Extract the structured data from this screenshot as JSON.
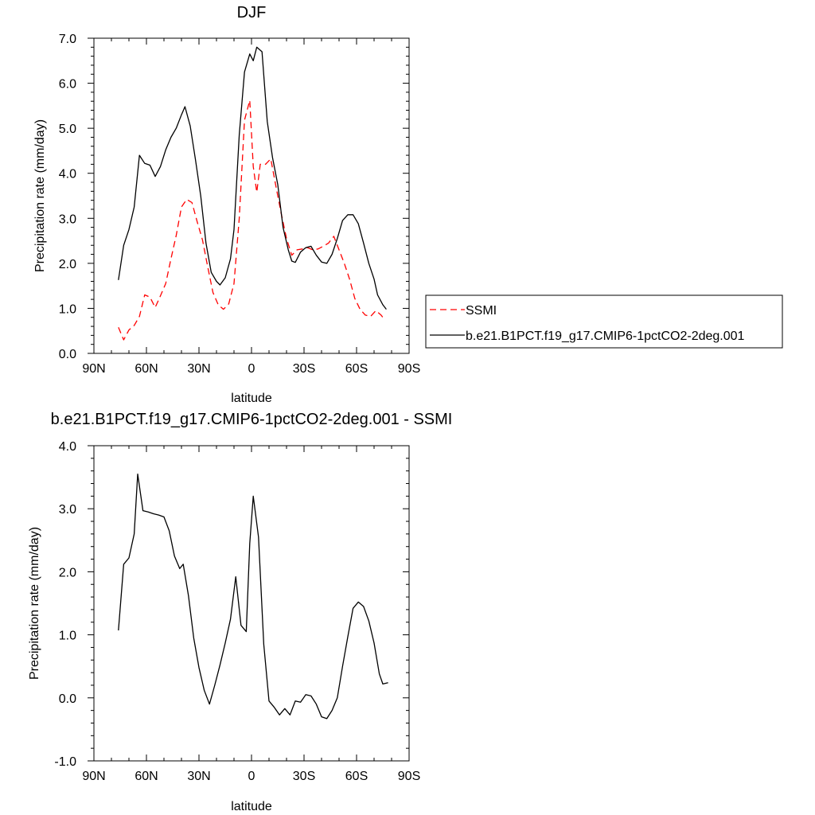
{
  "chart_data": [
    {
      "type": "line",
      "title": "DJF",
      "xlabel": "latitude",
      "ylabel": "Precipitation rate (mm/day)",
      "xlim": [
        -90,
        90
      ],
      "ylim": [
        0,
        7
      ],
      "xticks": [
        {
          "value": -90,
          "label": "90N"
        },
        {
          "value": -60,
          "label": "60N"
        },
        {
          "value": -30,
          "label": "30N"
        },
        {
          "value": 0,
          "label": "0"
        },
        {
          "value": 30,
          "label": "30S"
        },
        {
          "value": 60,
          "label": "60S"
        },
        {
          "value": 90,
          "label": "90S"
        }
      ],
      "yticks": [
        {
          "value": 0,
          "label": "0.0"
        },
        {
          "value": 1,
          "label": "1.0"
        },
        {
          "value": 2,
          "label": "2.0"
        },
        {
          "value": 3,
          "label": "3.0"
        },
        {
          "value": 4,
          "label": "4.0"
        },
        {
          "value": 5,
          "label": "5.0"
        },
        {
          "value": 6,
          "label": "6.0"
        },
        {
          "value": 7,
          "label": "7.0"
        }
      ],
      "legend_position": "right",
      "series": [
        {
          "name": "SSMI",
          "color": "#ff0000",
          "dashed": true,
          "points": [
            [
              -76,
              0.58
            ],
            [
              -73,
              0.3
            ],
            [
              -70,
              0.52
            ],
            [
              -67,
              0.62
            ],
            [
              -64,
              0.82
            ],
            [
              -61,
              1.3
            ],
            [
              -58,
              1.25
            ],
            [
              -55,
              1.02
            ],
            [
              -52,
              1.28
            ],
            [
              -49,
              1.55
            ],
            [
              -46,
              2.1
            ],
            [
              -43,
              2.62
            ],
            [
              -40,
              3.25
            ],
            [
              -37,
              3.42
            ],
            [
              -34,
              3.35
            ],
            [
              -31,
              2.92
            ],
            [
              -28,
              2.52
            ],
            [
              -25,
              1.92
            ],
            [
              -22,
              1.35
            ],
            [
              -19,
              1.08
            ],
            [
              -16,
              0.98
            ],
            [
              -13,
              1.1
            ],
            [
              -10,
              1.55
            ],
            [
              -7,
              3.0
            ],
            [
              -4,
              5.18
            ],
            [
              -1,
              5.62
            ],
            [
              1,
              4.15
            ],
            [
              3,
              3.58
            ],
            [
              5,
              4.2
            ],
            [
              8,
              4.2
            ],
            [
              11,
              4.32
            ],
            [
              14,
              3.7
            ],
            [
              17,
              3.1
            ],
            [
              20,
              2.55
            ],
            [
              23,
              2.18
            ],
            [
              26,
              2.3
            ],
            [
              29,
              2.32
            ],
            [
              32,
              2.35
            ],
            [
              35,
              2.3
            ],
            [
              38,
              2.32
            ],
            [
              41,
              2.38
            ],
            [
              44,
              2.45
            ],
            [
              47,
              2.6
            ],
            [
              50,
              2.3
            ],
            [
              53,
              2.0
            ],
            [
              56,
              1.65
            ],
            [
              59,
              1.22
            ],
            [
              62,
              0.98
            ],
            [
              65,
              0.85
            ],
            [
              68,
              0.82
            ],
            [
              71,
              0.95
            ],
            [
              74,
              0.85
            ],
            [
              76,
              0.75
            ]
          ]
        },
        {
          "name": "b.e21.B1PCT.f19_g17.CMIP6-1pctCO2-2deg.001",
          "color": "#000000",
          "dashed": false,
          "points": [
            [
              -76,
              1.63
            ],
            [
              -73,
              2.4
            ],
            [
              -70,
              2.75
            ],
            [
              -67,
              3.25
            ],
            [
              -64,
              4.4
            ],
            [
              -61,
              4.22
            ],
            [
              -58,
              4.18
            ],
            [
              -55,
              3.93
            ],
            [
              -52,
              4.15
            ],
            [
              -49,
              4.52
            ],
            [
              -46,
              4.8
            ],
            [
              -43,
              5.0
            ],
            [
              -40,
              5.3
            ],
            [
              -38,
              5.48
            ],
            [
              -35,
              5.05
            ],
            [
              -32,
              4.3
            ],
            [
              -29,
              3.5
            ],
            [
              -26,
              2.45
            ],
            [
              -23,
              1.8
            ],
            [
              -20,
              1.6
            ],
            [
              -18,
              1.52
            ],
            [
              -15,
              1.68
            ],
            [
              -12,
              2.1
            ],
            [
              -10,
              2.75
            ],
            [
              -7,
              4.85
            ],
            [
              -4,
              6.25
            ],
            [
              -1,
              6.65
            ],
            [
              1,
              6.5
            ],
            [
              3,
              6.8
            ],
            [
              6,
              6.7
            ],
            [
              9,
              5.15
            ],
            [
              12,
              4.35
            ],
            [
              15,
              3.75
            ],
            [
              18,
              2.8
            ],
            [
              21,
              2.3
            ],
            [
              23,
              2.05
            ],
            [
              25,
              2.02
            ],
            [
              28,
              2.25
            ],
            [
              31,
              2.35
            ],
            [
              34,
              2.38
            ],
            [
              37,
              2.18
            ],
            [
              40,
              2.03
            ],
            [
              43,
              2.0
            ],
            [
              46,
              2.2
            ],
            [
              49,
              2.55
            ],
            [
              52,
              2.95
            ],
            [
              55,
              3.08
            ],
            [
              58,
              3.08
            ],
            [
              61,
              2.88
            ],
            [
              64,
              2.45
            ],
            [
              67,
              2.0
            ],
            [
              70,
              1.65
            ],
            [
              72,
              1.3
            ],
            [
              75,
              1.08
            ],
            [
              77,
              0.98
            ]
          ]
        }
      ]
    },
    {
      "type": "line",
      "title": "b.e21.B1PCT.f19_g17.CMIP6-1pctCO2-2deg.001 - SSMI",
      "xlabel": "latitude",
      "ylabel": "Precipitation rate (mm/day)",
      "xlim": [
        -90,
        90
      ],
      "ylim": [
        -1,
        4
      ],
      "xticks": [
        {
          "value": -90,
          "label": "90N"
        },
        {
          "value": -60,
          "label": "60N"
        },
        {
          "value": -30,
          "label": "30N"
        },
        {
          "value": 0,
          "label": "0"
        },
        {
          "value": 30,
          "label": "30S"
        },
        {
          "value": 60,
          "label": "60S"
        },
        {
          "value": 90,
          "label": "90S"
        }
      ],
      "yticks": [
        {
          "value": -1,
          "label": "-1.0"
        },
        {
          "value": 0,
          "label": "0.0"
        },
        {
          "value": 1,
          "label": "1.0"
        },
        {
          "value": 2,
          "label": "2.0"
        },
        {
          "value": 3,
          "label": "3.0"
        },
        {
          "value": 4,
          "label": "4.0"
        }
      ],
      "series": [
        {
          "color": "#000000",
          "dashed": false,
          "points": [
            [
              -76,
              1.07
            ],
            [
              -73,
              2.12
            ],
            [
              -70,
              2.22
            ],
            [
              -67,
              2.6
            ],
            [
              -65,
              3.55
            ],
            [
              -62,
              2.97
            ],
            [
              -59,
              2.95
            ],
            [
              -56,
              2.92
            ],
            [
              -53,
              2.9
            ],
            [
              -50,
              2.87
            ],
            [
              -47,
              2.65
            ],
            [
              -44,
              2.25
            ],
            [
              -41,
              2.05
            ],
            [
              -39,
              2.12
            ],
            [
              -36,
              1.62
            ],
            [
              -33,
              0.95
            ],
            [
              -30,
              0.48
            ],
            [
              -27,
              0.12
            ],
            [
              -24,
              -0.1
            ],
            [
              -21,
              0.2
            ],
            [
              -18,
              0.52
            ],
            [
              -15,
              0.87
            ],
            [
              -12,
              1.25
            ],
            [
              -9,
              1.92
            ],
            [
              -6,
              1.15
            ],
            [
              -3,
              1.05
            ],
            [
              -1,
              2.45
            ],
            [
              1,
              3.2
            ],
            [
              4,
              2.55
            ],
            [
              7,
              0.85
            ],
            [
              10,
              -0.05
            ],
            [
              13,
              -0.15
            ],
            [
              16,
              -0.27
            ],
            [
              19,
              -0.17
            ],
            [
              22,
              -0.27
            ],
            [
              25,
              -0.05
            ],
            [
              28,
              -0.07
            ],
            [
              31,
              0.05
            ],
            [
              34,
              0.03
            ],
            [
              37,
              -0.1
            ],
            [
              40,
              -0.3
            ],
            [
              43,
              -0.33
            ],
            [
              46,
              -0.2
            ],
            [
              49,
              0.0
            ],
            [
              52,
              0.5
            ],
            [
              55,
              0.97
            ],
            [
              58,
              1.42
            ],
            [
              61,
              1.52
            ],
            [
              64,
              1.45
            ],
            [
              67,
              1.22
            ],
            [
              70,
              0.87
            ],
            [
              73,
              0.38
            ],
            [
              75,
              0.22
            ],
            [
              78,
              0.24
            ]
          ]
        }
      ]
    }
  ]
}
